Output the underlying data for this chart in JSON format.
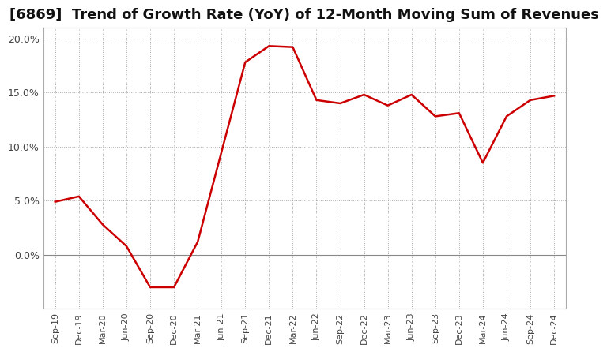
{
  "title": "[6869]  Trend of Growth Rate (YoY) of 12-Month Moving Sum of Revenues",
  "title_fontsize": 13,
  "line_color": "#cc0000",
  "background_color": "#ffffff",
  "plot_bg_color": "#ffffff",
  "grid_color": "#aaaaaa",
  "ylim": [
    -0.05,
    0.21
  ],
  "yticks": [
    0.0,
    0.05,
    0.1,
    0.15,
    0.2
  ],
  "ytick_labels": [
    "0.0%",
    "5.0%",
    "10.0%",
    "15.0%",
    "20.0%"
  ],
  "x_labels": [
    "Sep-19",
    "Dec-19",
    "Mar-20",
    "Jun-20",
    "Sep-20",
    "Dec-20",
    "Mar-21",
    "Jun-21",
    "Sep-21",
    "Dec-21",
    "Mar-22",
    "Jun-22",
    "Sep-22",
    "Dec-22",
    "Mar-23",
    "Jun-23",
    "Sep-23",
    "Dec-23",
    "Mar-24",
    "Jun-24",
    "Sep-24",
    "Dec-24"
  ],
  "values": [
    0.049,
    0.054,
    0.028,
    0.008,
    -0.03,
    -0.03,
    0.012,
    0.095,
    0.178,
    0.193,
    0.192,
    0.143,
    0.14,
    0.148,
    0.138,
    0.148,
    0.128,
    0.131,
    0.085,
    0.128,
    0.143,
    0.147
  ]
}
